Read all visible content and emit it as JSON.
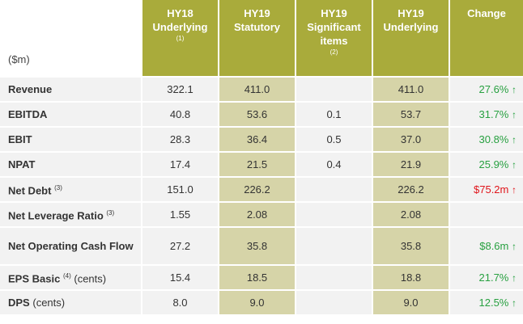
{
  "headers": {
    "unit": "($m)",
    "hy18_underlying": "HY18 Underlying",
    "hy18_note": "(1)",
    "hy19_statutory": "HY19 Statutory",
    "hy19_significant": "HY19 Significant items",
    "hy19_significant_note": "(2)",
    "hy19_underlying": "HY19 Underlying",
    "change": "Change"
  },
  "rows": [
    {
      "label": "Revenue",
      "sup": "",
      "suffix": "",
      "hy18": "322.1",
      "stat": "411.0",
      "sig": "",
      "und": "411.0",
      "change": "27.6%",
      "arrow": "↑",
      "color": "green"
    },
    {
      "label": "EBITDA",
      "sup": "",
      "suffix": "",
      "hy18": "40.8",
      "stat": "53.6",
      "sig": "0.1",
      "und": "53.7",
      "change": "31.7%",
      "arrow": "↑",
      "color": "green"
    },
    {
      "label": "EBIT",
      "sup": "",
      "suffix": "",
      "hy18": "28.3",
      "stat": "36.4",
      "sig": "0.5",
      "und": "37.0",
      "change": "30.8%",
      "arrow": "↑",
      "color": "green"
    },
    {
      "label": "NPAT",
      "sup": "",
      "suffix": "",
      "hy18": "17.4",
      "stat": "21.5",
      "sig": "0.4",
      "und": "21.9",
      "change": "25.9%",
      "arrow": "↑",
      "color": "green"
    },
    {
      "label": "Net Debt",
      "sup": "(3)",
      "suffix": "",
      "hy18": "151.0",
      "stat": "226.2",
      "sig": "",
      "und": "226.2",
      "change": "$75.2m",
      "arrow": "↑",
      "color": "red"
    },
    {
      "label": "Net Leverage Ratio",
      "sup": "(3)",
      "suffix": "",
      "hy18": "1.55",
      "stat": "2.08",
      "sig": "",
      "und": "2.08",
      "change": "",
      "arrow": "",
      "color": "none"
    },
    {
      "label": "Net Operating Cash Flow",
      "sup": "",
      "suffix": "",
      "hy18": "27.2",
      "stat": "35.8",
      "sig": "",
      "und": "35.8",
      "change": "$8.6m",
      "arrow": "↑",
      "color": "green"
    },
    {
      "label": "EPS Basic",
      "sup": "(4)",
      "suffix": "(cents)",
      "hy18": "15.4",
      "stat": "18.5",
      "sig": "",
      "und": "18.8",
      "change": "21.7%",
      "arrow": "↑",
      "color": "green"
    },
    {
      "label": "DPS",
      "sup": "",
      "suffix": "(cents)",
      "hy18": "8.0",
      "stat": "9.0",
      "sig": "",
      "und": "9.0",
      "change": "12.5%",
      "arrow": "↑",
      "color": "green"
    }
  ]
}
